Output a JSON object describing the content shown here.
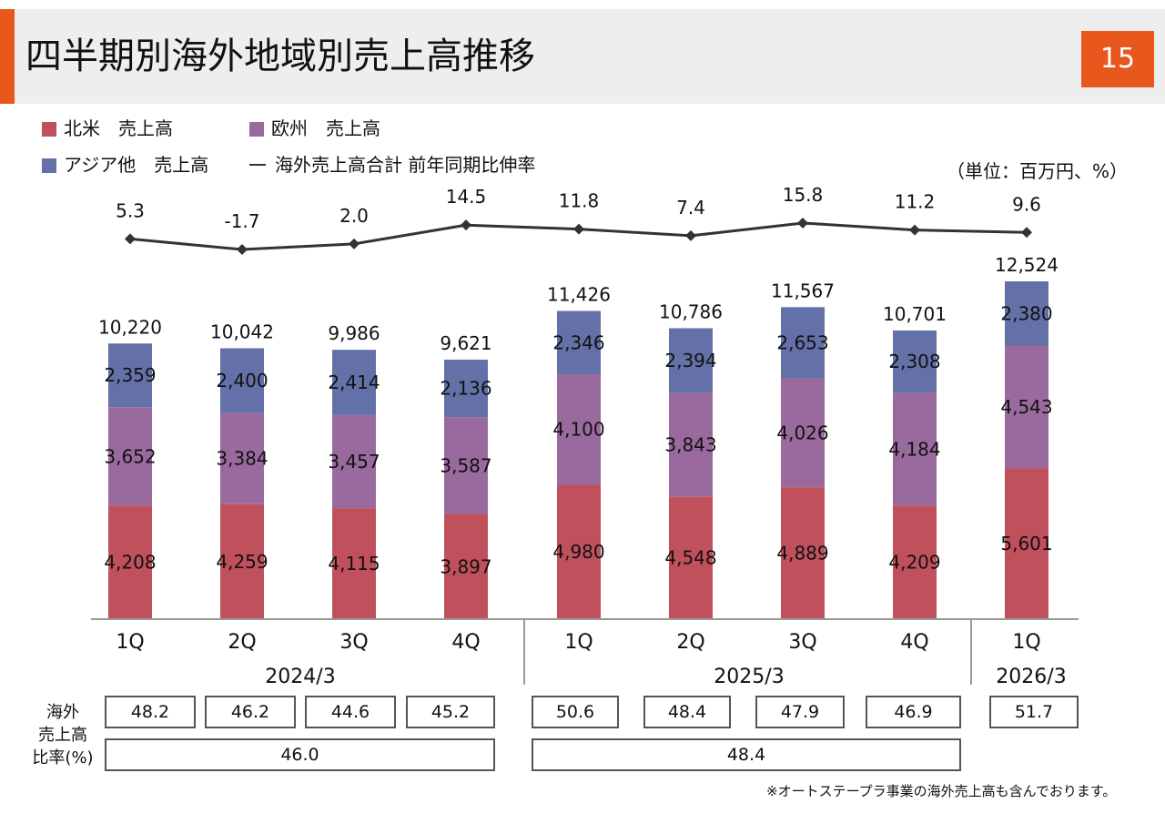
{
  "header": {
    "title": "四半期別海外地域別売上高推移",
    "page_number": "15"
  },
  "legend": {
    "north_america": "北米　売上高",
    "europe": "欧州　売上高",
    "asia": "アジア他　売上高",
    "growth": "海外売上高合計 前年同期比伸率"
  },
  "unit": "（単位：百万円、%）",
  "colors": {
    "north_america": "#c0505c",
    "europe": "#9a6a9f",
    "asia": "#6470a8",
    "line": "#333333",
    "accent": "#e8571c"
  },
  "chart_data": {
    "type": "bar",
    "stacked": true,
    "categories": [
      "1Q",
      "2Q",
      "3Q",
      "4Q",
      "1Q",
      "2Q",
      "3Q",
      "4Q",
      "1Q"
    ],
    "groups": [
      {
        "label": "2024/3",
        "count": 4
      },
      {
        "label": "2025/3",
        "count": 4
      },
      {
        "label": "2026/3",
        "count": 1
      }
    ],
    "series": [
      {
        "name": "北米　売上高",
        "values": [
          4208,
          4259,
          4115,
          3897,
          4980,
          4548,
          4889,
          4209,
          5601
        ],
        "labels": [
          "4,208",
          "4,259",
          "4,115",
          "3,897",
          "4,980",
          "4,548",
          "4,889",
          "4,209",
          "5,601"
        ]
      },
      {
        "name": "欧州　売上高",
        "values": [
          3652,
          3384,
          3457,
          3587,
          4100,
          3843,
          4026,
          4184,
          4543
        ],
        "labels": [
          "3,652",
          "3,384",
          "3,457",
          "3,587",
          "4,100",
          "3,843",
          "4,026",
          "4,184",
          "4,543"
        ]
      },
      {
        "name": "アジア他　売上高",
        "values": [
          2359,
          2400,
          2414,
          2136,
          2346,
          2394,
          2653,
          2308,
          2380
        ],
        "labels": [
          "2,359",
          "2,400",
          "2,414",
          "2,136",
          "2,346",
          "2,394",
          "2,653",
          "2,308",
          "2,380"
        ]
      }
    ],
    "totals": [
      10220,
      10042,
      9986,
      9621,
      11426,
      10786,
      11567,
      10701,
      12524
    ],
    "total_labels": [
      "10,220",
      "10,042",
      "9,986",
      "9,621",
      "11,426",
      "10,786",
      "11,567",
      "10,701",
      "12,524"
    ],
    "growth_line": {
      "name": "海外売上高合計 前年同期比伸率",
      "values": [
        5.3,
        -1.7,
        2.0,
        14.5,
        11.8,
        7.4,
        15.8,
        11.2,
        9.6
      ],
      "labels": [
        "5.3",
        "-1.7",
        "2.0",
        "14.5",
        "11.8",
        "7.4",
        "15.8",
        "11.2",
        "9.6"
      ]
    },
    "ylim": [
      0,
      12524
    ]
  },
  "ratio_table": {
    "label": "海外\n売上高\n比率(%)",
    "quarterly": [
      "48.2",
      "46.2",
      "44.6",
      "45.2",
      "50.6",
      "48.4",
      "47.9",
      "46.9",
      "51.7"
    ],
    "annual": [
      "46.0",
      "48.4"
    ]
  },
  "footnote": "※オートステープラ事業の海外売上高も含んでおります。"
}
